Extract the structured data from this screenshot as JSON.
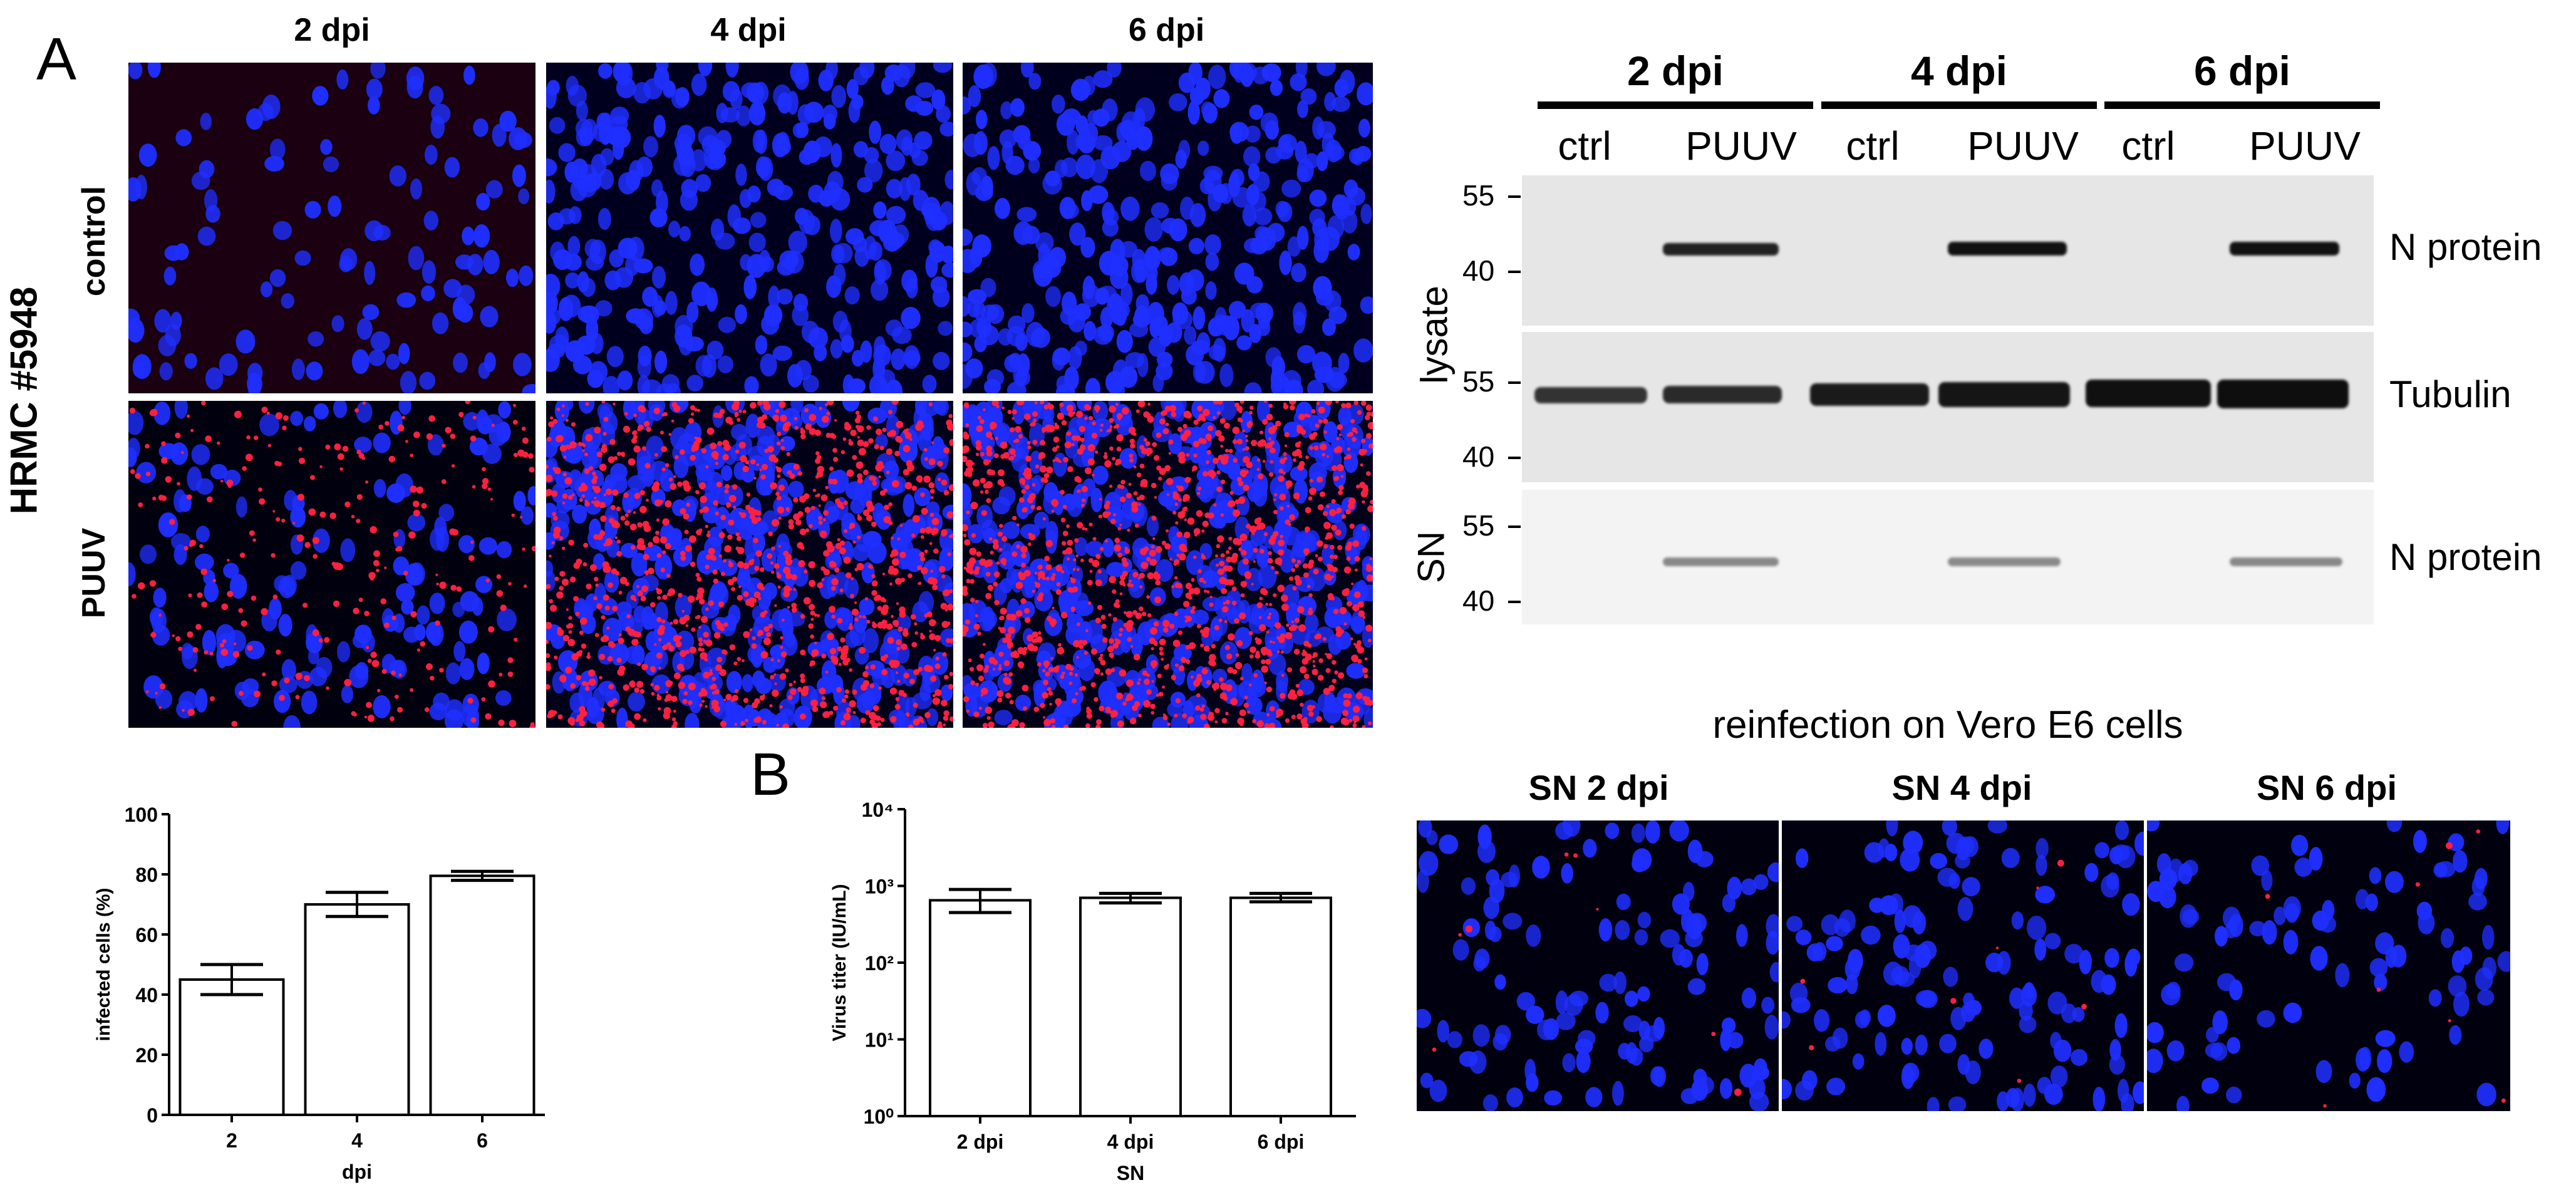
{
  "panel_a_label": "A",
  "panel_b_label": "B",
  "if_grid": {
    "col_titles": [
      "2 dpi",
      "4 dpi",
      "6 dpi"
    ],
    "row_group_label": "HRMC #5948",
    "row_titles": [
      "control",
      "PUUV"
    ]
  },
  "western": {
    "lane_groups": [
      "2 dpi",
      "4 dpi",
      "6 dpi"
    ],
    "lane_labels": [
      "ctrl",
      "PUUV",
      "ctrl",
      "PUUV",
      "ctrl",
      "PUUV"
    ],
    "lysate_label": "lysate",
    "sn_label": "SN",
    "blots": [
      {
        "name": "n-protein-lysate",
        "right_label": "N protein",
        "markers": [
          "55",
          "40"
        ]
      },
      {
        "name": "tubulin",
        "right_label": "Tubulin",
        "markers": [
          "55",
          "40"
        ]
      },
      {
        "name": "n-protein-sn",
        "right_label": "N protein",
        "markers": [
          "55",
          "40"
        ]
      }
    ]
  },
  "reinfection": {
    "title": "reinfection on Vero E6 cells",
    "col_titles": [
      "SN 2 dpi",
      "SN 4 dpi",
      "SN 6 dpi"
    ]
  },
  "chart_data": [
    {
      "type": "bar",
      "title": "",
      "categories": [
        "2",
        "4",
        "6"
      ],
      "values": [
        45,
        70,
        79.5
      ],
      "errors": [
        5,
        4,
        1.5
      ],
      "xlabel": "dpi",
      "ylabel": "infected cells (%)",
      "ylim": [
        0,
        100
      ],
      "yticks": [
        "0",
        "20",
        "40",
        "60",
        "80",
        "100"
      ],
      "log_scale": false
    },
    {
      "type": "bar",
      "title": "",
      "categories": [
        "2 dpi",
        "4 dpi",
        "6 dpi"
      ],
      "values": [
        650,
        700,
        700
      ],
      "errors_low": [
        200,
        100,
        80
      ],
      "errors_high": [
        250,
        100,
        100
      ],
      "xlabel": "SN",
      "ylabel": "Virus titer (IU/mL)",
      "ylim": [
        1,
        10000
      ],
      "yticks": [
        "10⁰",
        "10¹",
        "10²",
        "10³",
        "10⁴"
      ],
      "log_scale": true
    }
  ]
}
